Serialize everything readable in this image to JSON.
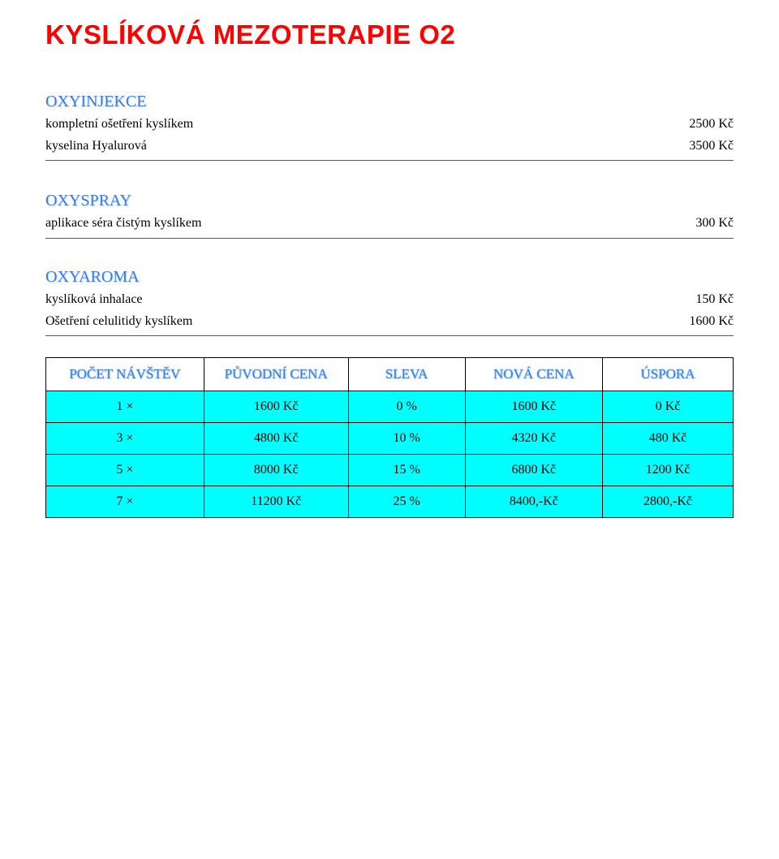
{
  "title": "KYSLÍKOVÁ MEZOTERAPIE O2",
  "sections": [
    {
      "heading": "OXYINJEKCE",
      "items": [
        {
          "label": "kompletní ošetření kyslíkem",
          "price": "2500 Kč"
        },
        {
          "label": "kyselina Hyalurová",
          "price": "3500 Kč"
        }
      ]
    },
    {
      "heading": "OXYSPRAY",
      "items": [
        {
          "label": "aplikace séra čistým kyslíkem",
          "price": "300 Kč"
        }
      ]
    },
    {
      "heading": "OXYAROMA",
      "items": [
        {
          "label": "kyslíková inhalace",
          "price": "150 Kč"
        },
        {
          "label": "Ošetření celulitidy kyslíkem",
          "price": "1600 Kč"
        }
      ]
    }
  ],
  "table": {
    "header_bg": "#ffffff",
    "row_bg": "#00ffff",
    "border_color": "#000000",
    "columns": [
      "POČET NÁVŠTĚV",
      "PŮVODNÍ CENA",
      "SLEVA",
      "NOVÁ CENA",
      "ÚSPORA"
    ],
    "col_widths_pct": [
      23,
      21,
      17,
      20,
      19
    ],
    "rows": [
      [
        "1 ×",
        "1600 Kč",
        "0 %",
        "1600 Kč",
        "0 Kč"
      ],
      [
        "3 ×",
        "4800 Kč",
        "10 %",
        "4320 Kč",
        "480 Kč"
      ],
      [
        "5 ×",
        "8000 Kč",
        "15 %",
        "6800 Kč",
        "1200 Kč"
      ],
      [
        "7 ×",
        "11200 Kč",
        "25 %",
        "8400,-Kč",
        "2800,-Kč"
      ]
    ]
  },
  "colors": {
    "title": "#ff0000",
    "section_heading": "#3c78f0",
    "text": "#000000",
    "divider": "#595959"
  }
}
